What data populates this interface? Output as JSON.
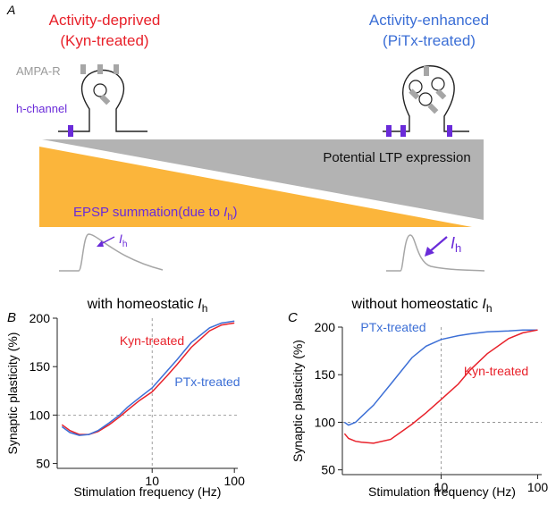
{
  "panel_a": {
    "letter": "A",
    "left": {
      "title": "Activity-deprived",
      "subtitle": "(Kyn-treated)"
    },
    "right": {
      "title": "Activity-enhanced",
      "subtitle": "(PiTx-treated)"
    },
    "ampa_label": "AMPA-R",
    "channel_label": "h-channel",
    "ltp_label": "Potential LTP expression",
    "epsp_label": [
      "EPSP summation(due to ",
      "I",
      "h",
      ")"
    ],
    "left_current": [
      "I",
      "h"
    ],
    "right_current": [
      "I",
      "h"
    ]
  },
  "chart_data": [
    {
      "type": "line",
      "letter": "B",
      "title": [
        "with homeostatic ",
        "I",
        "h"
      ],
      "x_label": "Stimulation frequency (Hz)",
      "y_label": "Synaptic plasticity (%)",
      "log_x": true,
      "xlim": [
        0.7,
        110
      ],
      "xticks": [
        10,
        100
      ],
      "ylim": [
        45,
        200
      ],
      "yticks": [
        50,
        100,
        150,
        200
      ],
      "vline": 10,
      "hline": 100,
      "x": [
        0.8,
        1,
        1.3,
        1.7,
        2.2,
        3,
        4,
        5,
        7,
        10,
        15,
        20,
        30,
        50,
        70,
        100
      ],
      "series": [
        {
          "name": "Kyn-treated",
          "color": "#e8212a",
          "values": [
            90,
            84,
            80,
            80,
            83,
            90,
            98,
            105,
            115,
            124,
            140,
            152,
            170,
            187,
            193,
            195
          ]
        },
        {
          "name": "PTx-treated",
          "color": "#3c6fd6",
          "values": [
            88,
            82,
            79,
            80,
            84,
            92,
            100,
            108,
            118,
            128,
            145,
            157,
            175,
            190,
            195,
            197
          ]
        }
      ]
    },
    {
      "type": "line",
      "letter": "C",
      "title": [
        "without homeostatic ",
        "I",
        "h"
      ],
      "x_label": "Stimulation frequency (Hz)",
      "y_label": "Synaptic plasticity (%)",
      "log_x": true,
      "xlim": [
        0.95,
        110
      ],
      "xticks": [
        10,
        100
      ],
      "ylim": [
        45,
        200
      ],
      "yticks": [
        50,
        100,
        150,
        200
      ],
      "vline": 10,
      "hline": 100,
      "x": [
        1,
        1.1,
        1.3,
        1.5,
        2,
        3,
        5,
        7,
        10,
        15,
        20,
        30,
        50,
        70,
        100
      ],
      "series": [
        {
          "name": "PTx-treated",
          "color": "#3c6fd6",
          "values": [
            100,
            97,
            100,
            106,
            118,
            140,
            168,
            180,
            187,
            191,
            193,
            195,
            196,
            197,
            197
          ]
        },
        {
          "name": "Kyn-treated",
          "color": "#e8212a",
          "values": [
            88,
            83,
            80,
            79,
            78,
            82,
            98,
            110,
            124,
            140,
            155,
            172,
            188,
            194,
            197
          ]
        }
      ]
    }
  ]
}
